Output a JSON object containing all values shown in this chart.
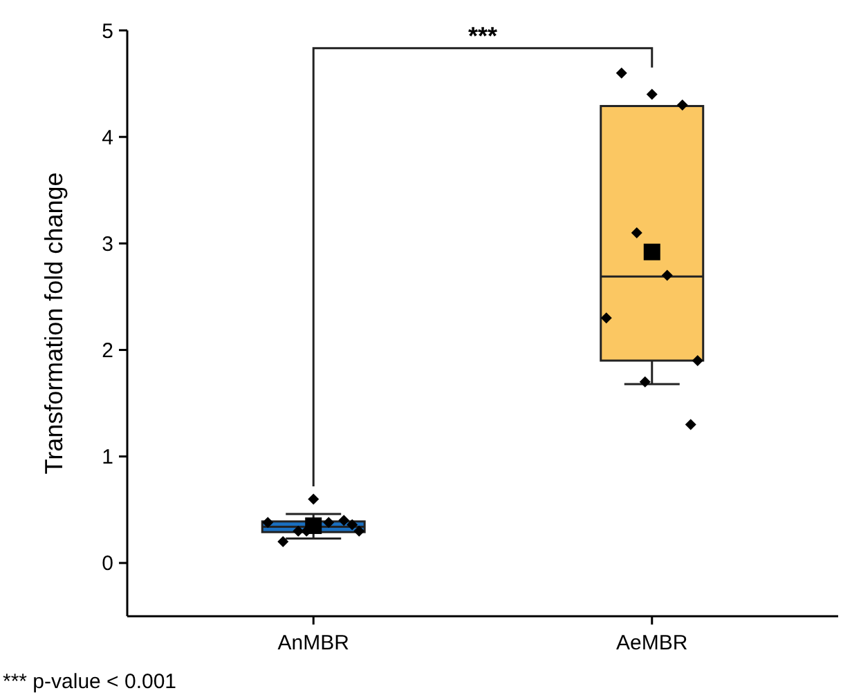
{
  "chart_data": {
    "type": "box",
    "ylabel": "Transformation fold change",
    "categories": [
      "AnMBR",
      "AeMBR"
    ],
    "colors": [
      "#1a6fbf",
      "#fbc762"
    ],
    "boxes": [
      {
        "low": 0.23,
        "q1": 0.29,
        "median": 0.34,
        "q3": 0.39,
        "high": 0.46,
        "mean": 0.35
      },
      {
        "low": 1.68,
        "q1": 1.9,
        "median": 2.69,
        "q3": 4.29,
        "high": 4.17,
        "mean": 2.92
      }
    ],
    "series": [
      {
        "type": "scatter",
        "marker": "diamond",
        "color": "#000000",
        "x": [
          "AnMBR",
          "AnMBR",
          "AnMBR",
          "AnMBR",
          "AnMBR",
          "AnMBR",
          "AnMBR",
          "AnMBR",
          "AnMBR",
          "AeMBR",
          "AeMBR",
          "AeMBR",
          "AeMBR",
          "AeMBR",
          "AeMBR",
          "AeMBR",
          "AeMBR",
          "AeMBR"
        ],
        "values": [
          0.6,
          0.2,
          0.4,
          0.3,
          0.38,
          0.38,
          0.3,
          0.3,
          0.36,
          4.4,
          4.6,
          4.3,
          3.1,
          2.7,
          2.3,
          1.9,
          1.7,
          1.3
        ]
      }
    ],
    "ylim": [
      -0.5,
      5
    ],
    "yticks": [
      0,
      1,
      2,
      3,
      4,
      5
    ],
    "annotations": [
      "***",
      "*** p-value < 0.001"
    ]
  }
}
